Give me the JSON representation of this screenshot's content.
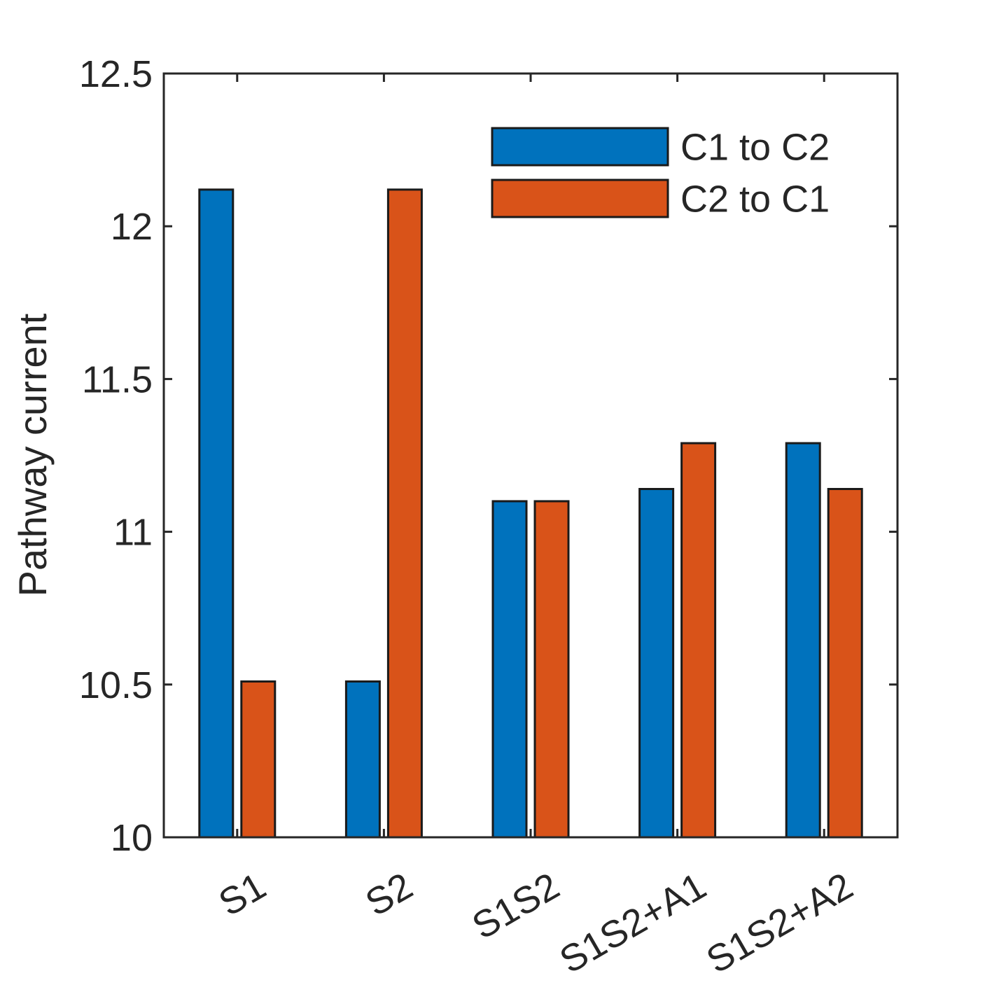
{
  "chart_data": {
    "type": "bar",
    "categories": [
      "S1",
      "S2",
      "S1S2",
      "S1S2+A1",
      "S1S2+A2"
    ],
    "series": [
      {
        "name": "C1 to C2",
        "values": [
          12.12,
          10.51,
          11.1,
          11.14,
          11.29
        ]
      },
      {
        "name": "C2 to C1",
        "values": [
          10.51,
          12.12,
          11.1,
          11.29,
          11.14
        ]
      }
    ],
    "title": "",
    "xlabel": "",
    "ylabel": "Pathway current",
    "ylim": [
      10,
      12.5
    ],
    "yticks": [
      "10",
      "10.5",
      "11",
      "11.5",
      "12",
      "12.5"
    ],
    "grid": false,
    "legend_position": "top-right",
    "colors": {
      "C1 to C2": "#0072BD",
      "C2 to C1": "#D95319",
      "axis": "#262626"
    }
  }
}
